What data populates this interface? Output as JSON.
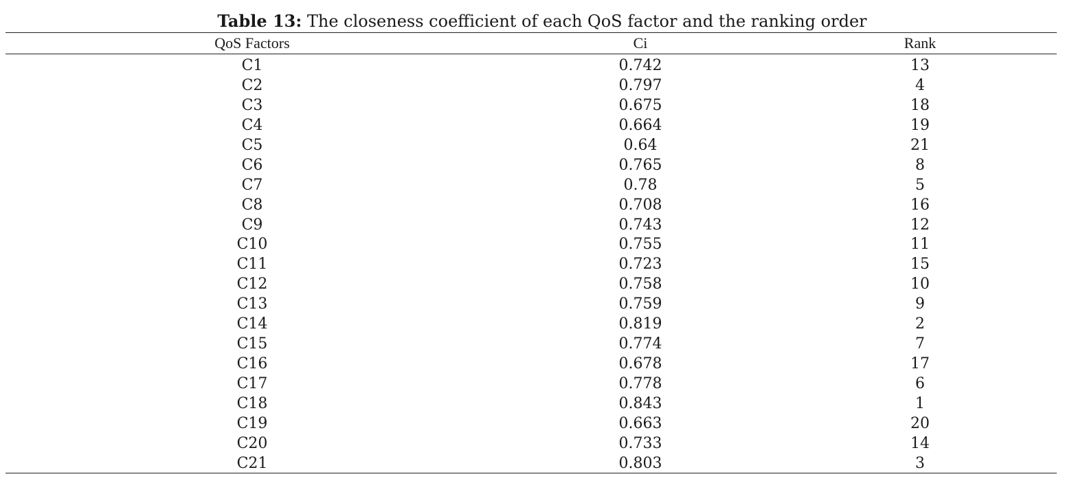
{
  "caption": {
    "label": "Table 13:",
    "text": " The closeness coefficient of each QoS factor and the ranking order"
  },
  "table": {
    "headers": {
      "factor": "QoS Factors",
      "ci": "Ci",
      "rank": "Rank"
    },
    "rows": [
      {
        "factor": "C1",
        "ci": "0.742",
        "rank": "13"
      },
      {
        "factor": "C2",
        "ci": "0.797",
        "rank": "4"
      },
      {
        "factor": "C3",
        "ci": "0.675",
        "rank": "18"
      },
      {
        "factor": "C4",
        "ci": "0.664",
        "rank": "19"
      },
      {
        "factor": "C5",
        "ci": "0.64",
        "rank": "21"
      },
      {
        "factor": "C6",
        "ci": "0.765",
        "rank": "8"
      },
      {
        "factor": "C7",
        "ci": "0.78",
        "rank": "5"
      },
      {
        "factor": "C8",
        "ci": "0.708",
        "rank": "16"
      },
      {
        "factor": "C9",
        "ci": "0.743",
        "rank": "12"
      },
      {
        "factor": "C10",
        "ci": "0.755",
        "rank": "11"
      },
      {
        "factor": "C11",
        "ci": "0.723",
        "rank": "15"
      },
      {
        "factor": "C12",
        "ci": "0.758",
        "rank": "10"
      },
      {
        "factor": "C13",
        "ci": "0.759",
        "rank": "9"
      },
      {
        "factor": "C14",
        "ci": "0.819",
        "rank": "2"
      },
      {
        "factor": "C15",
        "ci": "0.774",
        "rank": "7"
      },
      {
        "factor": "C16",
        "ci": "0.678",
        "rank": "17"
      },
      {
        "factor": "C17",
        "ci": "0.778",
        "rank": "6"
      },
      {
        "factor": "C18",
        "ci": "0.843",
        "rank": "1"
      },
      {
        "factor": "C19",
        "ci": "0.663",
        "rank": "20"
      },
      {
        "factor": "C20",
        "ci": "0.733",
        "rank": "14"
      },
      {
        "factor": "C21",
        "ci": "0.803",
        "rank": "3"
      }
    ]
  }
}
